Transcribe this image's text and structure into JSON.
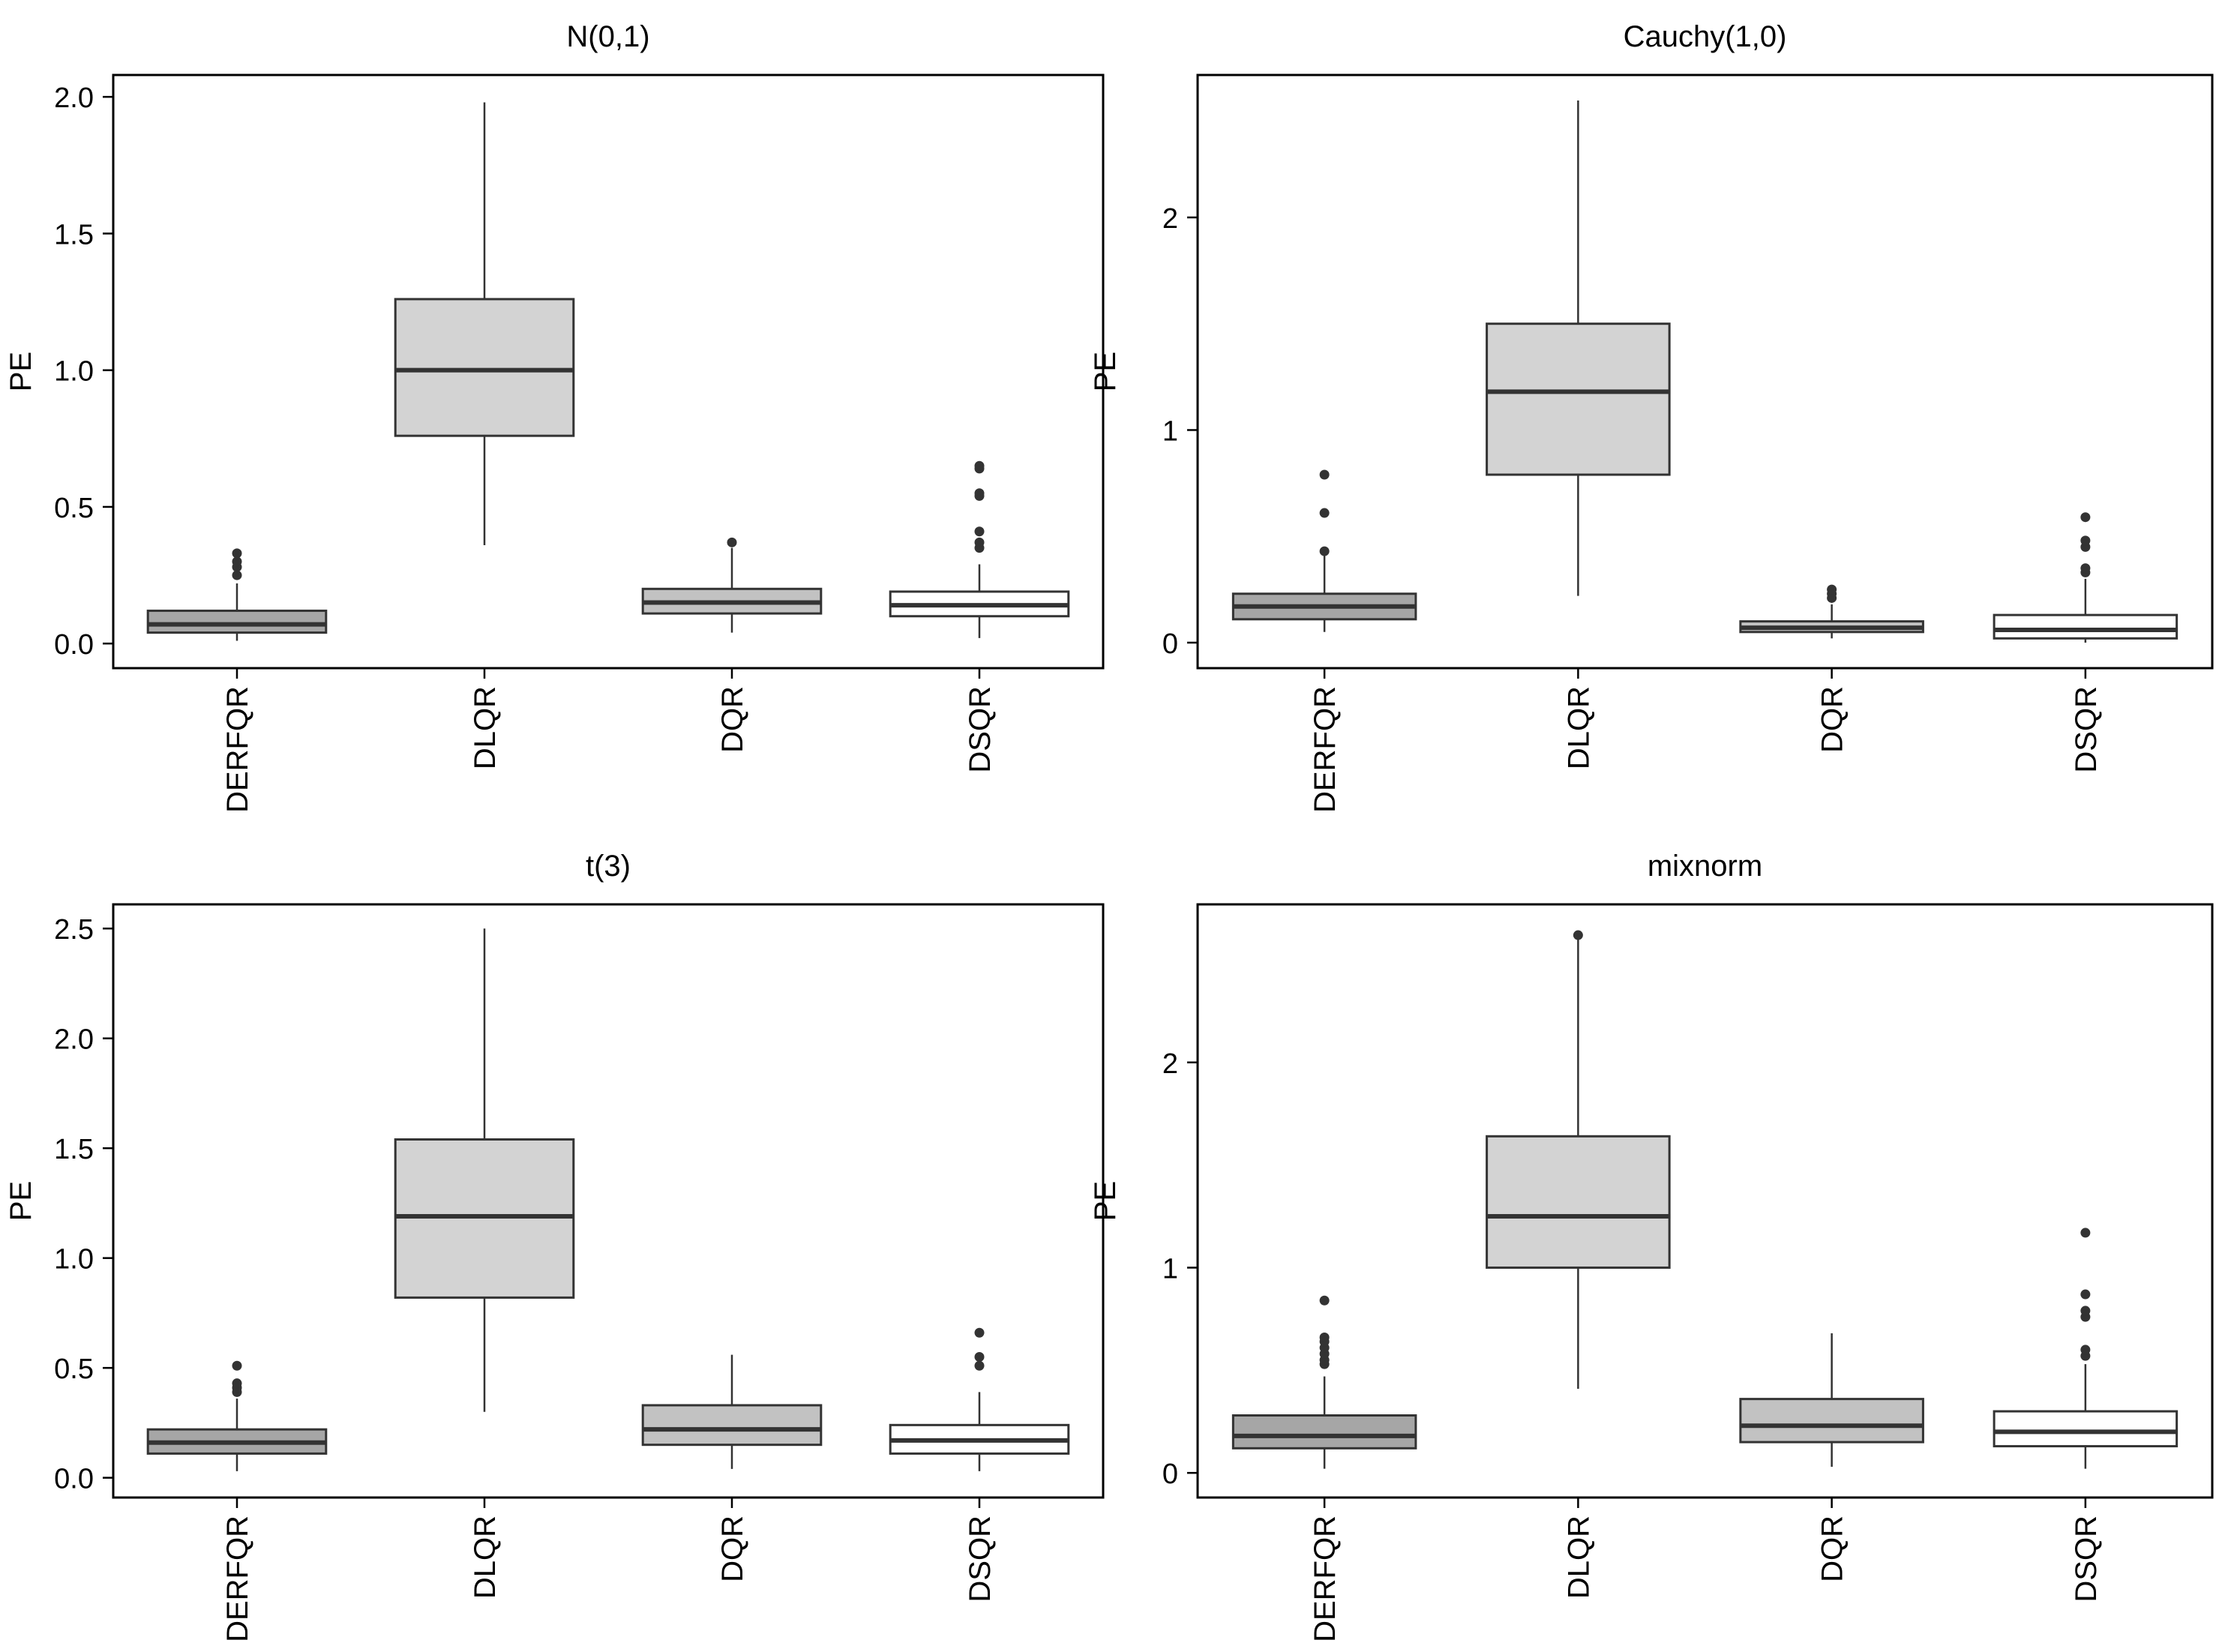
{
  "figure": {
    "ylabel": "PE",
    "categories": [
      "DERFQR",
      "DLQR",
      "DQR",
      "DSQR"
    ]
  },
  "colors": {
    "DERFQR": "#a6a6a6",
    "DLQR": "#d3d3d3",
    "DQR": "#c2c2c2",
    "DSQR": "#ffffff",
    "stroke": "#333333",
    "outlier": "#333333"
  },
  "chart_data": [
    {
      "type": "boxplot",
      "title": "N(0,1)",
      "xlabel": "",
      "ylabel": "PE",
      "ylim": [
        -0.09,
        2.08
      ],
      "yticks": [
        0.0,
        0.5,
        1.0,
        1.5,
        2.0
      ],
      "ytick_labels": [
        "0.0",
        "0.5",
        "1.0",
        "1.5",
        "2.0"
      ],
      "categories": [
        "DERFQR",
        "DLQR",
        "DQR",
        "DSQR"
      ],
      "boxes": [
        {
          "name": "DERFQR",
          "whisker_low": 0.01,
          "q1": 0.04,
          "median": 0.07,
          "q3": 0.12,
          "whisker_high": 0.22,
          "outliers": [
            0.25,
            0.28,
            0.3,
            0.33
          ]
        },
        {
          "name": "DLQR",
          "whisker_low": 0.36,
          "q1": 0.76,
          "median": 1.0,
          "q3": 1.26,
          "whisker_high": 1.98,
          "outliers": []
        },
        {
          "name": "DQR",
          "whisker_low": 0.04,
          "q1": 0.11,
          "median": 0.15,
          "q3": 0.2,
          "whisker_high": 0.35,
          "outliers": [
            0.37
          ]
        },
        {
          "name": "DSQR",
          "whisker_low": 0.02,
          "q1": 0.1,
          "median": 0.14,
          "q3": 0.19,
          "whisker_high": 0.29,
          "outliers": [
            0.35,
            0.37,
            0.41,
            0.54,
            0.55,
            0.64,
            0.65
          ]
        }
      ]
    },
    {
      "type": "boxplot",
      "title": "Cauchy(1,0)",
      "xlabel": "",
      "ylabel": "PE",
      "ylim": [
        -0.12,
        2.67
      ],
      "yticks": [
        0,
        1,
        2
      ],
      "ytick_labels": [
        "0",
        "1",
        "2"
      ],
      "categories": [
        "DERFQR",
        "DLQR",
        "DQR",
        "DSQR"
      ],
      "boxes": [
        {
          "name": "DERFQR",
          "whisker_low": 0.05,
          "q1": 0.11,
          "median": 0.17,
          "q3": 0.23,
          "whisker_high": 0.42,
          "outliers": [
            0.43,
            0.61,
            0.79
          ]
        },
        {
          "name": "DLQR",
          "whisker_low": 0.22,
          "q1": 0.79,
          "median": 1.18,
          "q3": 1.5,
          "whisker_high": 2.55,
          "outliers": []
        },
        {
          "name": "DQR",
          "whisker_low": 0.02,
          "q1": 0.05,
          "median": 0.07,
          "q3": 0.1,
          "whisker_high": 0.18,
          "outliers": [
            0.21,
            0.23,
            0.25
          ]
        },
        {
          "name": "DSQR",
          "whisker_low": 0.0,
          "q1": 0.02,
          "median": 0.06,
          "q3": 0.13,
          "whisker_high": 0.3,
          "outliers": [
            0.33,
            0.35,
            0.45,
            0.48,
            0.59
          ]
        }
      ]
    },
    {
      "type": "boxplot",
      "title": "t(3)",
      "xlabel": "",
      "ylabel": "PE",
      "ylim": [
        -0.09,
        2.61
      ],
      "yticks": [
        0.0,
        0.5,
        1.0,
        1.5,
        2.0,
        2.5
      ],
      "ytick_labels": [
        "0.0",
        "0.5",
        "1.0",
        "1.5",
        "2.0",
        "2.5"
      ],
      "categories": [
        "DERFQR",
        "DLQR",
        "DQR",
        "DSQR"
      ],
      "boxes": [
        {
          "name": "DERFQR",
          "whisker_low": 0.03,
          "q1": 0.11,
          "median": 0.16,
          "q3": 0.22,
          "whisker_high": 0.36,
          "outliers": [
            0.39,
            0.41,
            0.43,
            0.51
          ]
        },
        {
          "name": "DLQR",
          "whisker_low": 0.3,
          "q1": 0.82,
          "median": 1.19,
          "q3": 1.54,
          "whisker_high": 2.5,
          "outliers": []
        },
        {
          "name": "DQR",
          "whisker_low": 0.04,
          "q1": 0.15,
          "median": 0.22,
          "q3": 0.33,
          "whisker_high": 0.56,
          "outliers": []
        },
        {
          "name": "DSQR",
          "whisker_low": 0.03,
          "q1": 0.11,
          "median": 0.17,
          "q3": 0.24,
          "whisker_high": 0.39,
          "outliers": [
            0.51,
            0.55,
            0.66
          ]
        }
      ]
    },
    {
      "type": "boxplot",
      "title": "mixnorm",
      "xlabel": "",
      "ylabel": "PE",
      "ylim": [
        -0.12,
        2.77
      ],
      "yticks": [
        0,
        1,
        2
      ],
      "ytick_labels": [
        "0",
        "1",
        "2"
      ],
      "categories": [
        "DERFQR",
        "DLQR",
        "DQR",
        "DSQR"
      ],
      "boxes": [
        {
          "name": "DERFQR",
          "whisker_low": 0.02,
          "q1": 0.12,
          "median": 0.18,
          "q3": 0.28,
          "whisker_high": 0.47,
          "outliers": [
            0.53,
            0.55,
            0.58,
            0.61,
            0.64,
            0.66,
            0.84
          ]
        },
        {
          "name": "DLQR",
          "whisker_low": 0.41,
          "q1": 1.0,
          "median": 1.25,
          "q3": 1.64,
          "whisker_high": 2.6,
          "outliers": [
            2.62
          ]
        },
        {
          "name": "DQR",
          "whisker_low": 0.03,
          "q1": 0.15,
          "median": 0.23,
          "q3": 0.36,
          "whisker_high": 0.68,
          "outliers": []
        },
        {
          "name": "DSQR",
          "whisker_low": 0.02,
          "q1": 0.13,
          "median": 0.2,
          "q3": 0.3,
          "whisker_high": 0.53,
          "outliers": [
            0.57,
            0.6,
            0.76,
            0.79,
            0.87,
            1.17
          ]
        }
      ]
    }
  ]
}
